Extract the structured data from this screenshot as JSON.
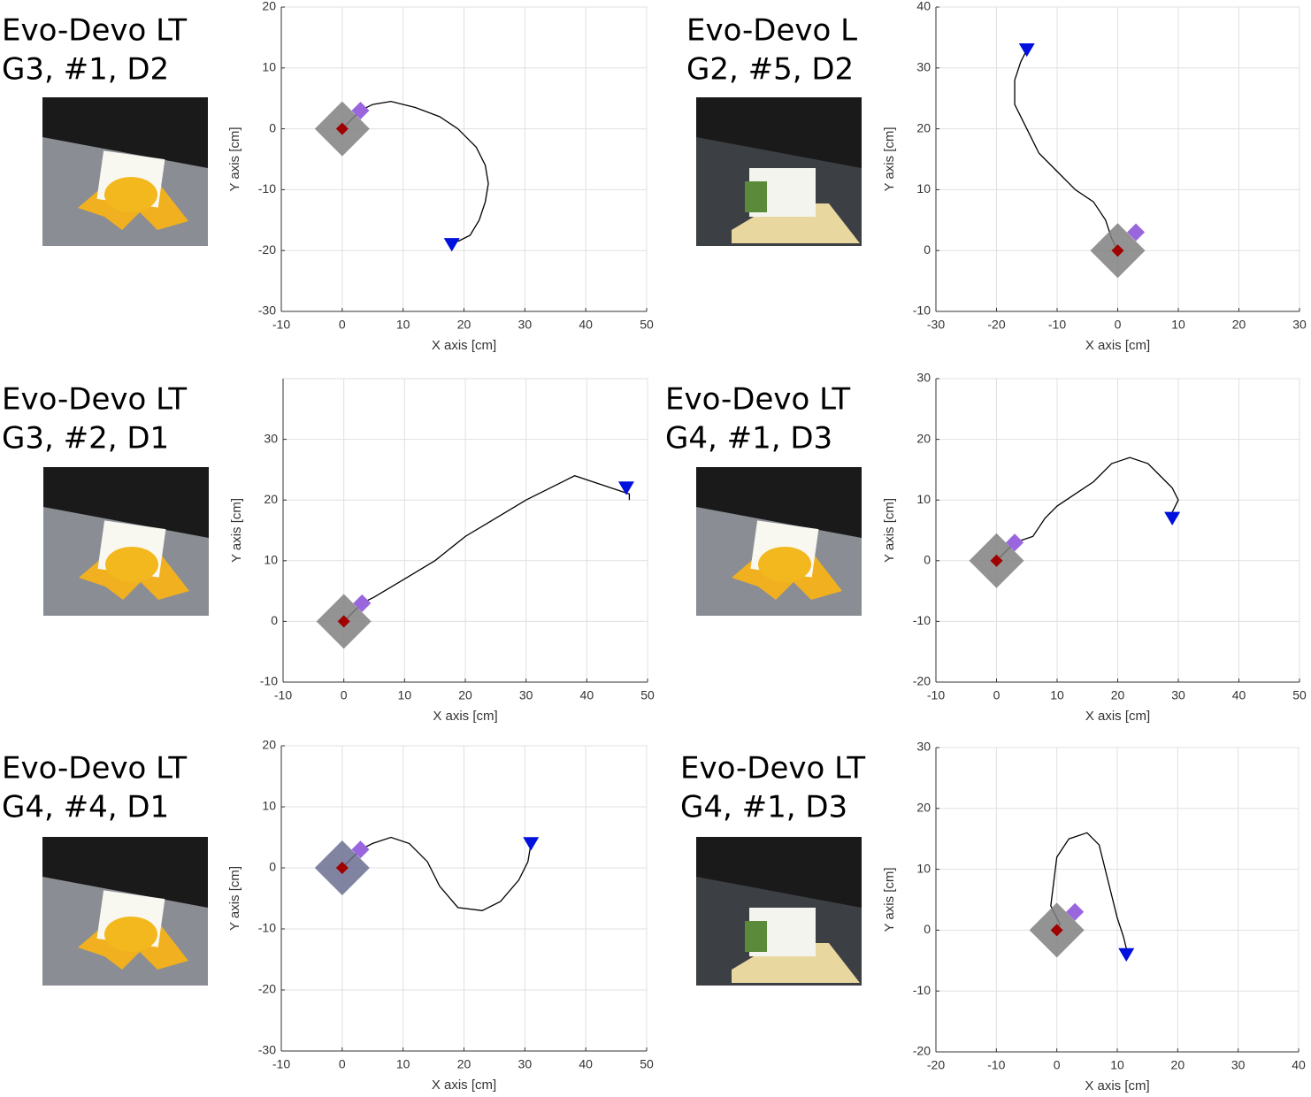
{
  "chart_data": [
    {
      "type": "line",
      "title": "Evo-Devo LT",
      "subtitle": "G3, #1, D2",
      "x_label": "X axis [cm]",
      "y_label": "Y axis [cm]",
      "xlim": [
        -10,
        50
      ],
      "xticks": [
        -10,
        0,
        10,
        20,
        30,
        40,
        50
      ],
      "ylim": [
        -30,
        20
      ],
      "yticks": [
        -30,
        -20,
        -10,
        0,
        10,
        20
      ],
      "grid": true,
      "series": [
        {
          "marker": "none",
          "color": "#000000",
          "x": [
            0,
            1,
            3,
            5,
            8,
            12,
            16,
            19,
            22,
            23.5,
            24,
            23.5,
            22.5,
            21,
            19
          ],
          "y": [
            0,
            1,
            3,
            4,
            4.5,
            3.5,
            2,
            0,
            -3,
            -6,
            -9,
            -12,
            -15,
            -17.5,
            -18.5
          ]
        },
        {
          "marker": "big-diamond",
          "color": "#808080",
          "x": [
            0
          ],
          "y": [
            0
          ]
        },
        {
          "marker": "diamond",
          "color": "#9966dd",
          "x": [
            3
          ],
          "y": [
            3
          ]
        },
        {
          "marker": "diamond",
          "color": "#a00000",
          "x": [
            0
          ],
          "y": [
            0
          ]
        },
        {
          "marker": "triangle",
          "color": "#0010dd",
          "x": [
            18
          ],
          "y": [
            -19
          ]
        }
      ]
    },
    {
      "type": "line",
      "title": "Evo-Devo L",
      "subtitle": "G2, #5, D2",
      "x_label": "X axis [cm]",
      "y_label": "Y axis [cm]",
      "xlim": [
        -30,
        30
      ],
      "xticks": [
        -30,
        -20,
        -10,
        0,
        10,
        20,
        30
      ],
      "ylim": [
        -10,
        40
      ],
      "yticks": [
        -10,
        0,
        10,
        20,
        30,
        40
      ],
      "grid": true,
      "series": [
        {
          "marker": "none",
          "color": "#000000",
          "x": [
            0,
            -1,
            -2,
            -4,
            -7,
            -10,
            -13,
            -15,
            -17,
            -17,
            -16,
            -15
          ],
          "y": [
            0,
            2,
            5,
            8,
            10,
            13,
            16,
            20,
            24,
            28,
            31,
            33
          ]
        },
        {
          "marker": "big-diamond",
          "color": "#808080",
          "x": [
            0
          ],
          "y": [
            0
          ]
        },
        {
          "marker": "diamond",
          "color": "#9966dd",
          "x": [
            3
          ],
          "y": [
            3
          ]
        },
        {
          "marker": "diamond",
          "color": "#a00000",
          "x": [
            0
          ],
          "y": [
            0
          ]
        },
        {
          "marker": "triangle",
          "color": "#0010dd",
          "x": [
            -15
          ],
          "y": [
            33
          ]
        }
      ]
    },
    {
      "type": "line",
      "title": "Evo-Devo LT",
      "subtitle": "G3, #2, D1",
      "x_label": "X axis [cm]",
      "y_label": "Y axis [cm]",
      "xlim": [
        -10,
        50
      ],
      "xticks": [
        -10,
        0,
        10,
        20,
        30,
        40,
        50
      ],
      "ylim": [
        -10,
        40
      ],
      "yticks": [
        -10,
        0,
        10,
        20,
        30
      ],
      "grid": true,
      "series": [
        {
          "marker": "none",
          "color": "#000000",
          "x": [
            0,
            3,
            5,
            10,
            15,
            20,
            25,
            30,
            35,
            38,
            41,
            44,
            47,
            47
          ],
          "y": [
            0,
            3,
            4,
            7,
            10,
            14,
            17,
            20,
            22.5,
            24,
            23,
            22,
            21,
            20
          ]
        },
        {
          "marker": "big-diamond",
          "color": "#808080",
          "x": [
            0
          ],
          "y": [
            0
          ]
        },
        {
          "marker": "diamond",
          "color": "#9966dd",
          "x": [
            3
          ],
          "y": [
            3
          ]
        },
        {
          "marker": "diamond",
          "color": "#a00000",
          "x": [
            0
          ],
          "y": [
            0
          ]
        },
        {
          "marker": "triangle",
          "color": "#0010dd",
          "x": [
            46.5
          ],
          "y": [
            22
          ]
        }
      ]
    },
    {
      "type": "line",
      "title": "Evo-Devo LT",
      "subtitle": "G4, #1, D3",
      "x_label": "X axis [cm]",
      "y_label": "Y axis [cm]",
      "xlim": [
        -10,
        50
      ],
      "xticks": [
        -10,
        0,
        10,
        20,
        30,
        40,
        50
      ],
      "ylim": [
        -20,
        30
      ],
      "yticks": [
        -20,
        -10,
        0,
        10,
        20,
        30
      ],
      "grid": true,
      "series": [
        {
          "marker": "none",
          "color": "#000000",
          "x": [
            0,
            1,
            3,
            6,
            8,
            10,
            13,
            16,
            19,
            22,
            25,
            27,
            29,
            30,
            29
          ],
          "y": [
            0,
            1,
            3,
            4,
            7,
            9,
            11,
            13,
            16,
            17,
            16,
            14,
            12,
            10,
            8
          ]
        },
        {
          "marker": "big-diamond",
          "color": "#808080",
          "x": [
            0
          ],
          "y": [
            0
          ]
        },
        {
          "marker": "diamond",
          "color": "#9966dd",
          "x": [
            3
          ],
          "y": [
            3
          ]
        },
        {
          "marker": "diamond",
          "color": "#a00000",
          "x": [
            0
          ],
          "y": [
            0
          ]
        },
        {
          "marker": "triangle",
          "color": "#0010dd",
          "x": [
            29
          ],
          "y": [
            7
          ]
        }
      ]
    },
    {
      "type": "line",
      "title": "Evo-Devo LT",
      "subtitle": "G4, #4, D1",
      "x_label": "X axis [cm]",
      "y_label": "Y axis [cm]",
      "xlim": [
        -10,
        50
      ],
      "xticks": [
        -10,
        0,
        10,
        20,
        30,
        40,
        50
      ],
      "ylim": [
        -30,
        20
      ],
      "yticks": [
        -30,
        -20,
        -10,
        0,
        10,
        20
      ],
      "grid": true,
      "series": [
        {
          "marker": "none",
          "color": "#000000",
          "x": [
            0,
            1,
            3,
            5,
            8,
            11,
            14,
            16,
            19,
            23,
            26,
            29,
            30.5,
            31
          ],
          "y": [
            0,
            1,
            3,
            4,
            5,
            4,
            1,
            -3,
            -6.5,
            -7,
            -5.5,
            -2,
            1,
            4
          ]
        },
        {
          "marker": "big-diamond",
          "color": "#6a6e90",
          "x": [
            0
          ],
          "y": [
            0
          ]
        },
        {
          "marker": "diamond",
          "color": "#9966dd",
          "x": [
            3
          ],
          "y": [
            3
          ]
        },
        {
          "marker": "diamond",
          "color": "#a00000",
          "x": [
            0
          ],
          "y": [
            0
          ]
        },
        {
          "marker": "triangle",
          "color": "#0010dd",
          "x": [
            31
          ],
          "y": [
            4
          ]
        }
      ]
    },
    {
      "type": "line",
      "title": "Evo-Devo LT",
      "subtitle": "G4, #1, D3",
      "x_label": "X axis [cm]",
      "y_label": "Y axis [cm]",
      "xlim": [
        -20,
        40
      ],
      "xticks": [
        -20,
        -10,
        0,
        10,
        20,
        30,
        40
      ],
      "ylim": [
        -20,
        30
      ],
      "yticks": [
        -20,
        -10,
        0,
        10,
        20,
        30
      ],
      "grid": true,
      "series": [
        {
          "marker": "none",
          "color": "#000000",
          "x": [
            0,
            0.5,
            -1,
            -0.5,
            0,
            2,
            5,
            7,
            8,
            9,
            10,
            11,
            11.5
          ],
          "y": [
            0,
            1,
            4,
            8,
            12,
            15,
            16,
            14,
            10,
            6,
            2,
            -1,
            -3
          ]
        },
        {
          "marker": "big-diamond",
          "color": "#808080",
          "x": [
            0
          ],
          "y": [
            0
          ]
        },
        {
          "marker": "diamond",
          "color": "#9966dd",
          "x": [
            3
          ],
          "y": [
            3
          ]
        },
        {
          "marker": "diamond",
          "color": "#a00000",
          "x": [
            0
          ],
          "y": [
            0
          ]
        },
        {
          "marker": "triangle",
          "color": "#0010dd",
          "x": [
            11.5
          ],
          "y": [
            -4
          ]
        }
      ]
    }
  ]
}
